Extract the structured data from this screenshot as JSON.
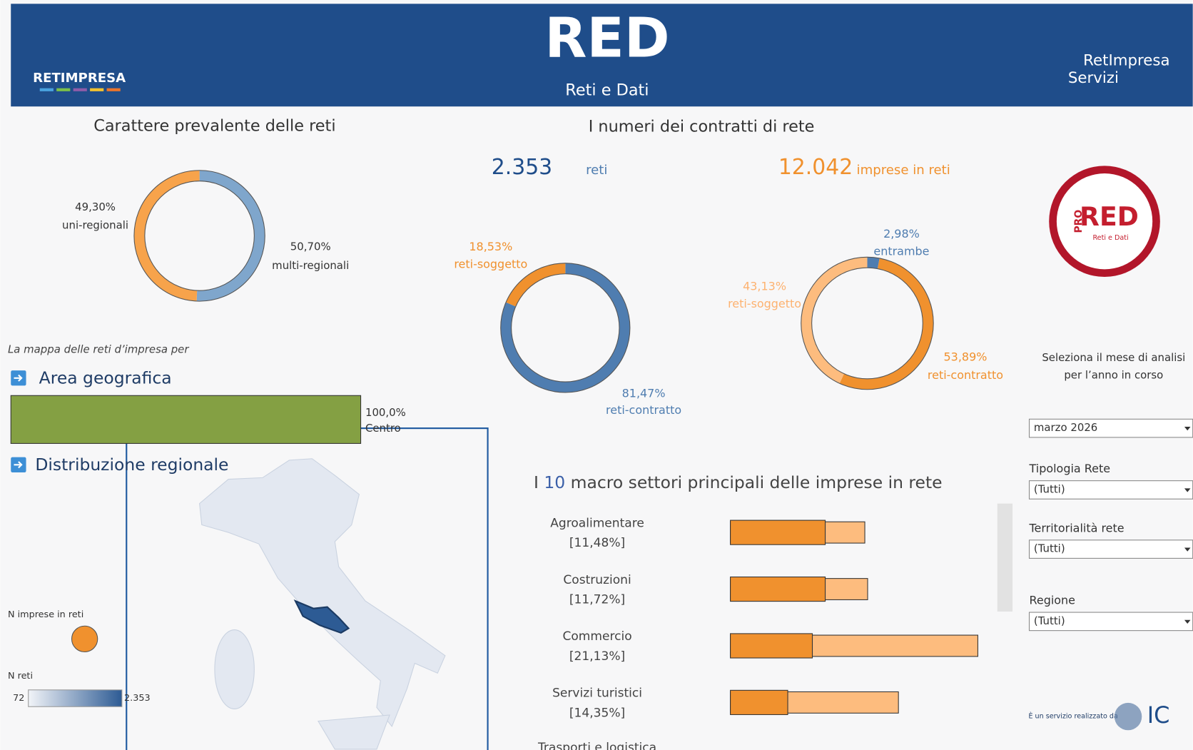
{
  "header": {
    "logo_left": "RETIMPRESA",
    "logo_center_mark": "RED",
    "logo_center": "Reti e Dati",
    "logo_right_1": "RetImpresa",
    "logo_right_2": "Servizi"
  },
  "character": {
    "title": "Carattere prevalente delle reti",
    "slices": [
      {
        "label": "multi-regionali",
        "value": 50.7,
        "value_label": "50,70%",
        "color": "#7fa6cc"
      },
      {
        "label": "uni-regionali",
        "value": 49.3,
        "value_label": "49,30%",
        "color": "#f7a34b"
      }
    ]
  },
  "map_intro": "La mappa delle reti d’impresa per",
  "area": {
    "title": "Area geografica",
    "bars": [
      {
        "label": "Centro",
        "value": 100.0,
        "value_label": "100,0%",
        "color": "#84a043"
      }
    ]
  },
  "region": {
    "title": "Distribuzione regionale",
    "size_legend": "N imprese in reti",
    "color_legend": "N reti",
    "color_min": 72,
    "color_max": {
      "value": 2353,
      "label": "2.353"
    }
  },
  "contracts": {
    "title": "I numeri dei contratti di rete",
    "reti": {
      "value": 2353,
      "value_label": "2.353",
      "unit": "reti"
    },
    "imprese": {
      "value": 12042,
      "value_label": "12.042",
      "unit": "imprese in reti"
    },
    "reti_donut": [
      {
        "label": "reti-contratto",
        "value": 81.47,
        "value_label": "81,47%",
        "color": "#4f7db0"
      },
      {
        "label": "reti-soggetto",
        "value": 18.53,
        "value_label": "18,53%",
        "color": "#f0912e"
      }
    ],
    "imprese_donut": [
      {
        "label": "entrambe",
        "value": 2.98,
        "value_label": "2,98%",
        "color": "#4f7db0"
      },
      {
        "label": "reti-contratto",
        "value": 53.89,
        "value_label": "53,89%",
        "color": "#f0912e"
      },
      {
        "label": "reti-soggetto",
        "value": 43.13,
        "value_label": "43,13%",
        "color": "#fdbc7e"
      }
    ]
  },
  "sectors": {
    "title_pre": "I",
    "title_num": "10",
    "title_post": "macro settori principali delle imprese in rete",
    "rows": [
      {
        "label": "Agroalimentare",
        "share": 11.48,
        "share_label": "[11,48%]",
        "reti_share": 8.1
      },
      {
        "label": "Costruzioni",
        "share": 11.72,
        "share_label": "[11,72%]",
        "reti_share": 8.1
      },
      {
        "label": "Commercio",
        "share": 21.13,
        "share_label": "[21,13%]",
        "reti_share": 7.0
      },
      {
        "label": "Servizi turistici",
        "share": 14.35,
        "share_label": "[14,35%]",
        "reti_share": 4.9
      }
    ],
    "cut_label": "Trasporti e logistica"
  },
  "pro_logo": {
    "pro": "PRO",
    "mark": "RED",
    "sub": "Reti e Dati"
  },
  "filters": {
    "prompt_1": "Seleziona il mese di analisi",
    "prompt_2": "per l’anno in corso",
    "month": "marzo 2026",
    "items": [
      {
        "label": "Tipologia Rete",
        "value": "(Tutti)"
      },
      {
        "label": "Territorialità rete",
        "value": "(Tutti)"
      },
      {
        "label": "Regione",
        "value": "(Tutti)"
      }
    ]
  },
  "footer": {
    "credit": "È un servizio realizzato da",
    "brand": "IC"
  }
}
